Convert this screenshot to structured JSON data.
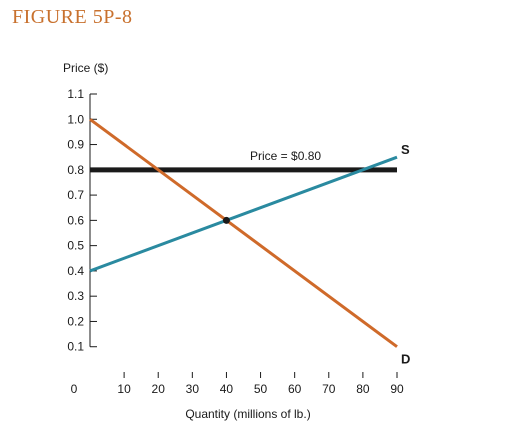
{
  "figure_label": "FIGURE 5P-8",
  "chart_data": {
    "type": "line",
    "ylabel": "Price ($)",
    "xlabel": "Quantity (millions of lb.)",
    "xlim": [
      0,
      90
    ],
    "ylim": [
      0,
      1.1
    ],
    "x_ticks": [
      0,
      10,
      20,
      30,
      40,
      50,
      60,
      70,
      80,
      90
    ],
    "y_ticks": [
      0.1,
      0.2,
      0.3,
      0.4,
      0.5,
      0.6,
      0.7,
      0.8,
      0.9,
      1.0,
      1.1
    ],
    "x_tick_labels": [
      "0",
      "10",
      "20",
      "30",
      "40",
      "50",
      "60",
      "70",
      "80",
      "90"
    ],
    "y_tick_labels": [
      "0.1",
      "0.2",
      "0.3",
      "0.4",
      "0.5",
      "0.6",
      "0.7",
      "0.8",
      "0.9",
      "1.0",
      "1.1"
    ],
    "series": [
      {
        "name": "S",
        "color": "#2a8aa0",
        "points": [
          [
            0,
            0.4
          ],
          [
            90,
            0.85
          ]
        ]
      },
      {
        "name": "D",
        "color": "#cf6a2a",
        "points": [
          [
            0,
            1.0
          ],
          [
            90,
            0.1
          ]
        ]
      }
    ],
    "price_line": {
      "label": "Price = $0.80",
      "y": 0.8,
      "x": [
        0,
        90
      ],
      "color": "#1a1a1a"
    },
    "equilibrium": {
      "x": 40,
      "y": 0.6
    }
  }
}
